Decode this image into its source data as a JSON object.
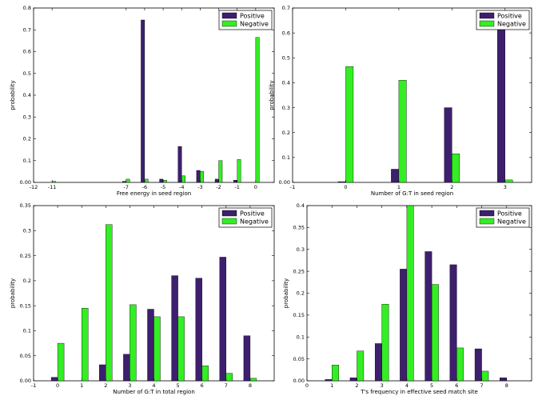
{
  "colors": {
    "positive": "#3d1f6e",
    "negative": "#33ee22"
  },
  "chart_data": [
    {
      "type": "bar",
      "xlabel": "Free energy in seed region",
      "ylabel": "probability",
      "xlim": [
        -12,
        1
      ],
      "ylim": [
        0,
        0.8
      ],
      "xticks": [
        -12,
        -11,
        -7,
        -6,
        -5,
        -4,
        -3,
        -2,
        -1,
        0
      ],
      "yticks": [
        0,
        0.1,
        0.2,
        0.3,
        0.4,
        0.5,
        0.6,
        0.7,
        0.8
      ],
      "x": [
        -11,
        -7,
        -6,
        -5,
        -4,
        -3,
        -2,
        -1,
        0
      ],
      "series": [
        {
          "name": "Positive",
          "values": [
            0,
            0.005,
            0.745,
            0.015,
            0.165,
            0.055,
            0.015,
            0.01,
            0
          ]
        },
        {
          "name": "Negative",
          "values": [
            0.005,
            0.015,
            0.015,
            0.01,
            0.03,
            0.05,
            0.1,
            0.105,
            0.665
          ]
        }
      ],
      "legend": "top-right",
      "grid": false
    },
    {
      "type": "bar",
      "xlabel": "Number of G:T in seed region",
      "ylabel": "probability",
      "xlim": [
        -1,
        3.5
      ],
      "ylim": [
        0,
        0.7
      ],
      "xticks": [
        -1,
        0,
        1,
        2,
        3
      ],
      "yticks": [
        0,
        0.1,
        0.2,
        0.3,
        0.4,
        0.5,
        0.6,
        0.7
      ],
      "x": [
        0,
        1,
        2,
        3
      ],
      "series": [
        {
          "name": "Positive",
          "values": [
            0.003,
            0.053,
            0.3,
            0.645
          ]
        },
        {
          "name": "Negative",
          "values": [
            0.465,
            0.41,
            0.115,
            0.01
          ]
        }
      ],
      "legend": "top-right",
      "grid": false
    },
    {
      "type": "bar",
      "xlabel": "Number of G:T in total region",
      "ylabel": "probability",
      "xlim": [
        -1,
        9
      ],
      "ylim": [
        0,
        0.35
      ],
      "xticks": [
        -1,
        0,
        1,
        2,
        3,
        4,
        5,
        6,
        7,
        8
      ],
      "yticks": [
        0,
        0.05,
        0.1,
        0.15,
        0.2,
        0.25,
        0.3,
        0.35
      ],
      "x": [
        0,
        1,
        2,
        3,
        4,
        5,
        6,
        7,
        8
      ],
      "series": [
        {
          "name": "Positive",
          "values": [
            0.007,
            0,
            0.032,
            0.053,
            0.143,
            0.21,
            0.205,
            0.247,
            0.09
          ]
        },
        {
          "name": "Negative",
          "values": [
            0.075,
            0.145,
            0.312,
            0.152,
            0.128,
            0.128,
            0.03,
            0.015,
            0.005
          ]
        }
      ],
      "legend": "top-right",
      "grid": false
    },
    {
      "type": "bar",
      "xlabel": "T's frequency in effective seed match site",
      "ylabel": "probability",
      "xlim": [
        0,
        9
      ],
      "ylim": [
        0,
        0.4
      ],
      "xticks": [
        0,
        1,
        2,
        3,
        4,
        5,
        6,
        7,
        8
      ],
      "yticks": [
        0,
        0.05,
        0.1,
        0.15,
        0.2,
        0.25,
        0.3,
        0.35,
        0.4
      ],
      "x": [
        1,
        2,
        3,
        4,
        5,
        6,
        7,
        8
      ],
      "series": [
        {
          "name": "Positive",
          "values": [
            0.003,
            0.007,
            0.085,
            0.255,
            0.295,
            0.265,
            0.073,
            0.007
          ]
        },
        {
          "name": "Negative",
          "values": [
            0.036,
            0.068,
            0.175,
            0.4,
            0.22,
            0.075,
            0.022,
            0
          ]
        }
      ],
      "legend": "top-right",
      "grid": false
    }
  ]
}
